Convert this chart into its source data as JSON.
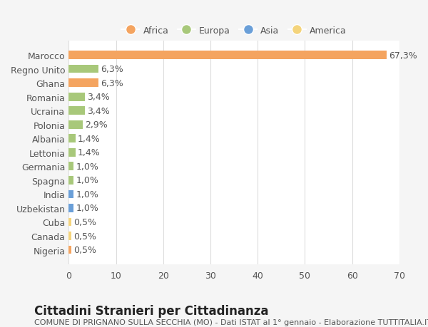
{
  "categories": [
    "Nigeria",
    "Canada",
    "Cuba",
    "Uzbekistan",
    "India",
    "Spagna",
    "Germania",
    "Lettonia",
    "Albania",
    "Polonia",
    "Ucraina",
    "Romania",
    "Ghana",
    "Regno Unito",
    "Marocco"
  ],
  "values": [
    0.5,
    0.5,
    0.5,
    1.0,
    1.0,
    1.0,
    1.0,
    1.4,
    1.4,
    2.9,
    3.4,
    3.4,
    6.3,
    6.3,
    67.3
  ],
  "labels": [
    "0,5%",
    "0,5%",
    "0,5%",
    "1,0%",
    "1,0%",
    "1,0%",
    "1,0%",
    "1,4%",
    "1,4%",
    "2,9%",
    "3,4%",
    "3,4%",
    "6,3%",
    "6,3%",
    "67,3%"
  ],
  "colors": [
    "#f4a460",
    "#f4d47c",
    "#f4d47c",
    "#6a9fd8",
    "#6a9fd8",
    "#a8c87a",
    "#a8c87a",
    "#a8c87a",
    "#a8c87a",
    "#a8c87a",
    "#a8c87a",
    "#a8c87a",
    "#f4a460",
    "#a8c87a",
    "#f4a460"
  ],
  "legend_labels": [
    "Africa",
    "Europa",
    "Asia",
    "America"
  ],
  "legend_colors": [
    "#f4a460",
    "#a8c87a",
    "#6a9fd8",
    "#f4d47c"
  ],
  "title": "Cittadini Stranieri per Cittadinanza",
  "subtitle": "COMUNE DI PRIGNANO SULLA SECCHIA (MO) - Dati ISTAT al 1° gennaio - Elaborazione TUTTITALIA.IT",
  "xlim": [
    0,
    70
  ],
  "xticks": [
    0,
    10,
    20,
    30,
    40,
    50,
    60,
    70
  ],
  "background_color": "#f5f5f5",
  "bar_background": "#ffffff",
  "grid_color": "#dddddd",
  "text_color": "#555555",
  "label_fontsize": 9,
  "tick_fontsize": 9,
  "title_fontsize": 12,
  "subtitle_fontsize": 8
}
